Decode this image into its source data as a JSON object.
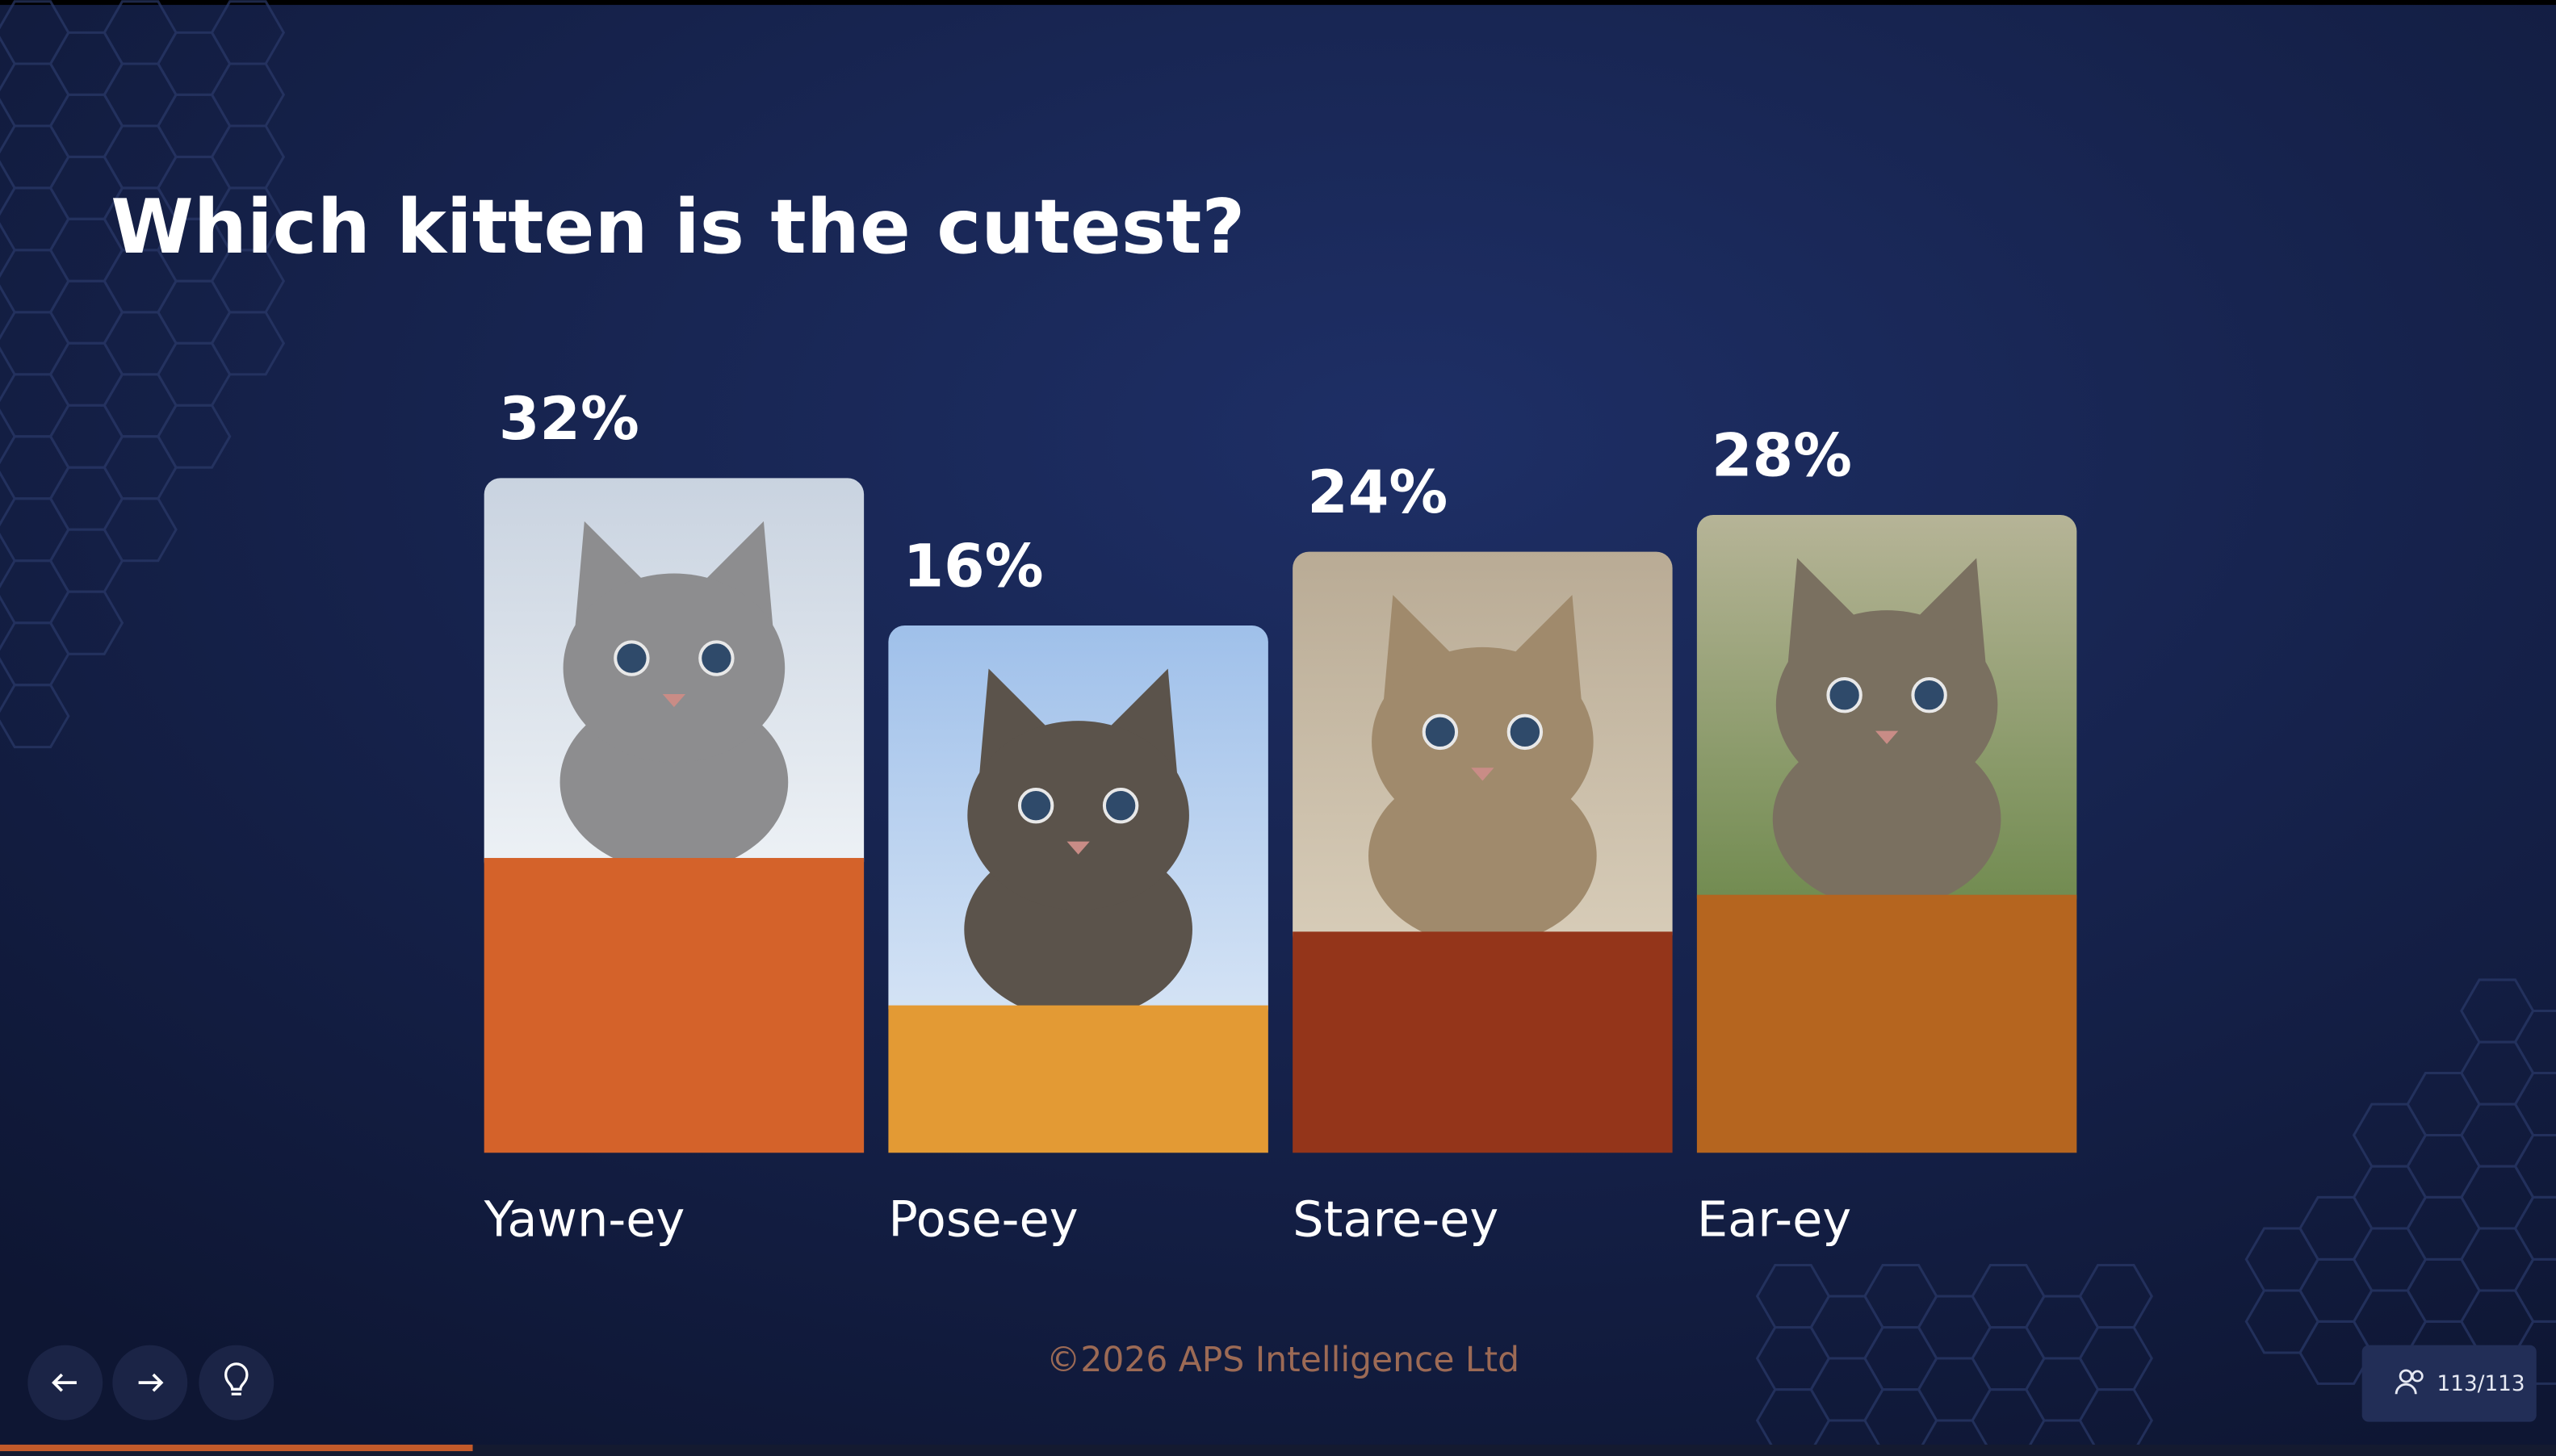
{
  "chart_data": {
    "type": "bar",
    "title": "Which kitten is the cutest?",
    "categories": [
      "Yawn-ey",
      "Pose-ey",
      "Stare-ey",
      "Ear-ey"
    ],
    "values": [
      32,
      16,
      24,
      28
    ],
    "value_labels": [
      "32%",
      "16%",
      "24%",
      "28%"
    ],
    "colors": [
      "#d4622a",
      "#e39a34",
      "#94351a",
      "#b5651f"
    ]
  },
  "footer": "©2026 APS Intelligence Ltd",
  "participants": "113/113"
}
